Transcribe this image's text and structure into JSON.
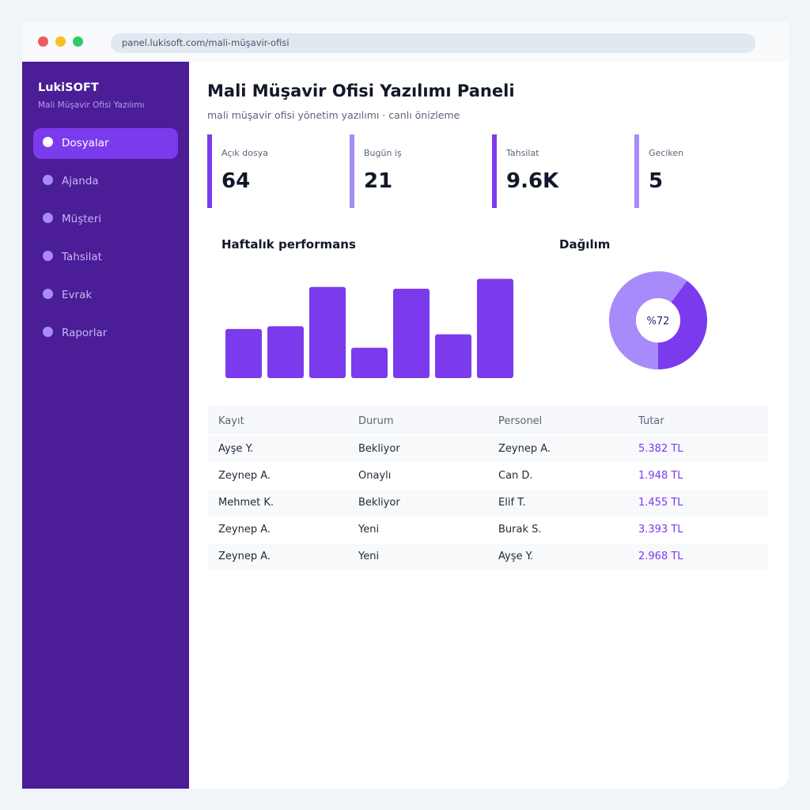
{
  "browser": {
    "url": "panel.lukisoft.com/mali-müşavir-ofisi"
  },
  "sidebar": {
    "brand": "LukiSOFT",
    "subtitle": "Mali Müşavir Ofisi Yazılımı",
    "items": [
      {
        "label": "Dosyalar",
        "active": true
      },
      {
        "label": "Ajanda",
        "active": false
      },
      {
        "label": "Müşteri",
        "active": false
      },
      {
        "label": "Tahsilat",
        "active": false
      },
      {
        "label": "Evrak",
        "active": false
      },
      {
        "label": "Raporlar",
        "active": false
      }
    ]
  },
  "main": {
    "title": "Mali Müşavir Ofisi Yazılımı Paneli",
    "subtitle": "mali müşavir ofisi yönetim yazılımı · canlı önizleme"
  },
  "stats": [
    {
      "label": "Açık dosya",
      "value": "64",
      "color": "#7c3aed"
    },
    {
      "label": "Bugün iş",
      "value": "21",
      "color": "#a78bfa"
    },
    {
      "label": "Tahsilat",
      "value": "9.6K",
      "color": "#7c3aed"
    },
    {
      "label": "Geciken",
      "value": "5",
      "color": "#a78bfa"
    }
  ],
  "charts": {
    "performance_title": "Haftalık performans",
    "distribution_title": "Dağılım",
    "donut_label": "%72"
  },
  "chart_data": [
    {
      "type": "bar",
      "title": "Haftalık performans",
      "categories": [
        "",
        "",
        "",
        "",
        "",
        "",
        ""
      ],
      "values": [
        55,
        58,
        102,
        34,
        100,
        49,
        111
      ],
      "ylim": [
        0,
        115
      ],
      "color": "#7c3aed",
      "grid": false
    },
    {
      "type": "pie",
      "title": "Dağılım",
      "labels": [
        "",
        ""
      ],
      "values": [
        40,
        60
      ],
      "colors": [
        "#7c3aed",
        "#a78bfa"
      ],
      "center_label": "%72"
    }
  ],
  "table": {
    "headers": [
      "Kayıt",
      "Durum",
      "Personel",
      "Tutar"
    ],
    "rows": [
      [
        "Ayşe Y.",
        "Bekliyor",
        "Zeynep A.",
        "5.382 TL"
      ],
      [
        "Zeynep A.",
        "Onaylı",
        "Can D.",
        "1.948 TL"
      ],
      [
        "Mehmet K.",
        "Bekliyor",
        "Elif T.",
        "1.455 TL"
      ],
      [
        "Zeynep A.",
        "Yeni",
        "Burak S.",
        "3.393 TL"
      ],
      [
        "Zeynep A.",
        "Yeni",
        "Ayşe Y.",
        "2.968 TL"
      ]
    ]
  },
  "colors": {
    "sidebar_bg": "#4b1d96",
    "accent": "#7c3aed",
    "accent_light": "#a78bfa"
  }
}
